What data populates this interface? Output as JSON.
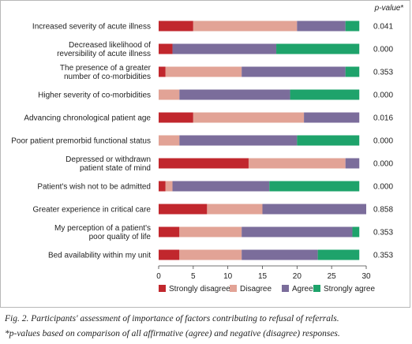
{
  "chart_data": {
    "type": "bar",
    "stacked": true,
    "orientation": "horizontal",
    "categories": [
      [
        "Increased severity of acute illness"
      ],
      [
        "Decreased likelihood of",
        "reversibility of acute illness"
      ],
      [
        "The presence of a greater",
        "number of co-morbidities"
      ],
      [
        "Higher severity of co-morbidities"
      ],
      [
        "Advancing chronological patient age"
      ],
      [
        "Poor patient premorbid functional status"
      ],
      [
        "Depressed or withdrawn",
        "patient state of mind"
      ],
      [
        "Patient's wish not to be admitted"
      ],
      [
        "Greater experience in critical care"
      ],
      [
        "My perception of a patient's",
        "poor quality of life"
      ],
      [
        "Bed availability within my unit"
      ]
    ],
    "series": [
      {
        "name": "Strongly disagree",
        "color": "#c1272d",
        "values": [
          5,
          2,
          1,
          0,
          5,
          0,
          13,
          1,
          7,
          3,
          3
        ]
      },
      {
        "name": "Disagree",
        "color": "#e2a396",
        "values": [
          15,
          0,
          11,
          3,
          16,
          3,
          14,
          1,
          8,
          9,
          9
        ]
      },
      {
        "name": "Agree",
        "color": "#7b6d9b",
        "values": [
          7,
          15,
          15,
          16,
          8,
          17,
          2,
          14,
          15,
          16,
          11
        ]
      },
      {
        "name": "Strongly agree",
        "color": "#1ea36b",
        "values": [
          2,
          12,
          2,
          10,
          0,
          9,
          0,
          13,
          0,
          1,
          6
        ]
      }
    ],
    "xlim": [
      0,
      30
    ],
    "xticks": [
      "0",
      "5",
      "10",
      "15",
      "20",
      "25",
      "30"
    ],
    "pvalue_header": [
      "p-value",
      "*"
    ],
    "pvalues": [
      "0.041",
      "0.000",
      "0.353",
      "0.000",
      "0.016",
      "0.000",
      "0.000",
      "0.000",
      "0.858",
      "0.353",
      "0.353"
    ],
    "legend_position": "bottom"
  },
  "caption": "Fig. 2. Participants' assessment of importance of factors contributing to refusal of referrals.",
  "footnote": "*p-values based on comparison of all affirmative (agree) and negative (disagree) responses."
}
